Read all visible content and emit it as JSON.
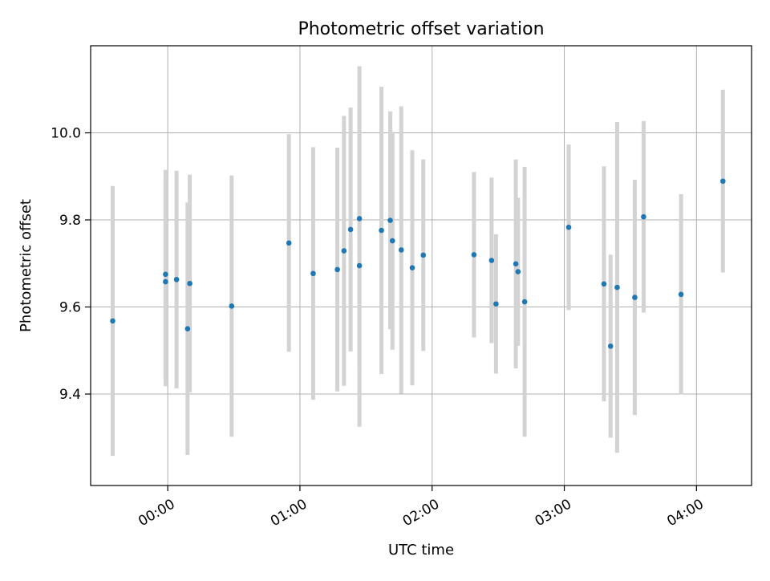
{
  "chart_data": {
    "type": "scatter",
    "title": "Photometric offset variation",
    "xlabel": "UTC time",
    "ylabel": "Photometric offset",
    "x_unit": "UTC time",
    "xlim": [
      "23:25",
      "04:25"
    ],
    "ylim": [
      9.19,
      10.2
    ],
    "x_ticks": [
      "00:00",
      "01:00",
      "02:00",
      "03:00",
      "04:00"
    ],
    "y_ticks": [
      "9.4",
      "9.6",
      "9.8",
      "10.0"
    ],
    "grid": true,
    "legend": "none",
    "marker_color": "#1f77b4",
    "errorbar_color": "#d3d3d3",
    "points": [
      {
        "x": "23:35",
        "y": 9.568,
        "yerr": 0.31
      },
      {
        "x": "23:59",
        "y": 9.675,
        "yerr": 0.24
      },
      {
        "x": "23:59",
        "y": 9.658,
        "yerr": 0.24
      },
      {
        "x": "00:04",
        "y": 9.663,
        "yerr": 0.25
      },
      {
        "x": "00:09",
        "y": 9.55,
        "yerr": 0.29
      },
      {
        "x": "00:10",
        "y": 9.654,
        "yerr": 0.25
      },
      {
        "x": "00:29",
        "y": 9.602,
        "yerr": 0.3
      },
      {
        "x": "00:55",
        "y": 9.747,
        "yerr": 0.25
      },
      {
        "x": "01:06",
        "y": 9.677,
        "yerr": 0.29
      },
      {
        "x": "01:17",
        "y": 9.686,
        "yerr": 0.28
      },
      {
        "x": "01:20",
        "y": 9.729,
        "yerr": 0.31
      },
      {
        "x": "01:23",
        "y": 9.778,
        "yerr": 0.28
      },
      {
        "x": "01:27",
        "y": 9.695,
        "yerr": 0.37
      },
      {
        "x": "01:27",
        "y": 9.803,
        "yerr": 0.35
      },
      {
        "x": "01:37",
        "y": 9.776,
        "yerr": 0.33
      },
      {
        "x": "01:41",
        "y": 9.799,
        "yerr": 0.25
      },
      {
        "x": "01:42",
        "y": 9.752,
        "yerr": 0.25
      },
      {
        "x": "01:46",
        "y": 9.731,
        "yerr": 0.33
      },
      {
        "x": "01:51",
        "y": 9.69,
        "yerr": 0.27
      },
      {
        "x": "01:56",
        "y": 9.719,
        "yerr": 0.22
      },
      {
        "x": "02:19",
        "y": 9.72,
        "yerr": 0.19
      },
      {
        "x": "02:27",
        "y": 9.707,
        "yerr": 0.19
      },
      {
        "x": "02:29",
        "y": 9.607,
        "yerr": 0.16
      },
      {
        "x": "02:38",
        "y": 9.699,
        "yerr": 0.24
      },
      {
        "x": "02:39",
        "y": 9.681,
        "yerr": 0.17
      },
      {
        "x": "02:42",
        "y": 9.612,
        "yerr": 0.31
      },
      {
        "x": "03:02",
        "y": 9.783,
        "yerr": 0.19
      },
      {
        "x": "03:18",
        "y": 9.653,
        "yerr": 0.27
      },
      {
        "x": "03:21",
        "y": 9.51,
        "yerr": 0.21
      },
      {
        "x": "03:24",
        "y": 9.645,
        "yerr": 0.38
      },
      {
        "x": "03:32",
        "y": 9.622,
        "yerr": 0.27
      },
      {
        "x": "03:36",
        "y": 9.807,
        "yerr": 0.22
      },
      {
        "x": "03:53",
        "y": 9.629,
        "yerr": 0.23
      },
      {
        "x": "04:12",
        "y": 9.889,
        "yerr": 0.21
      }
    ]
  }
}
